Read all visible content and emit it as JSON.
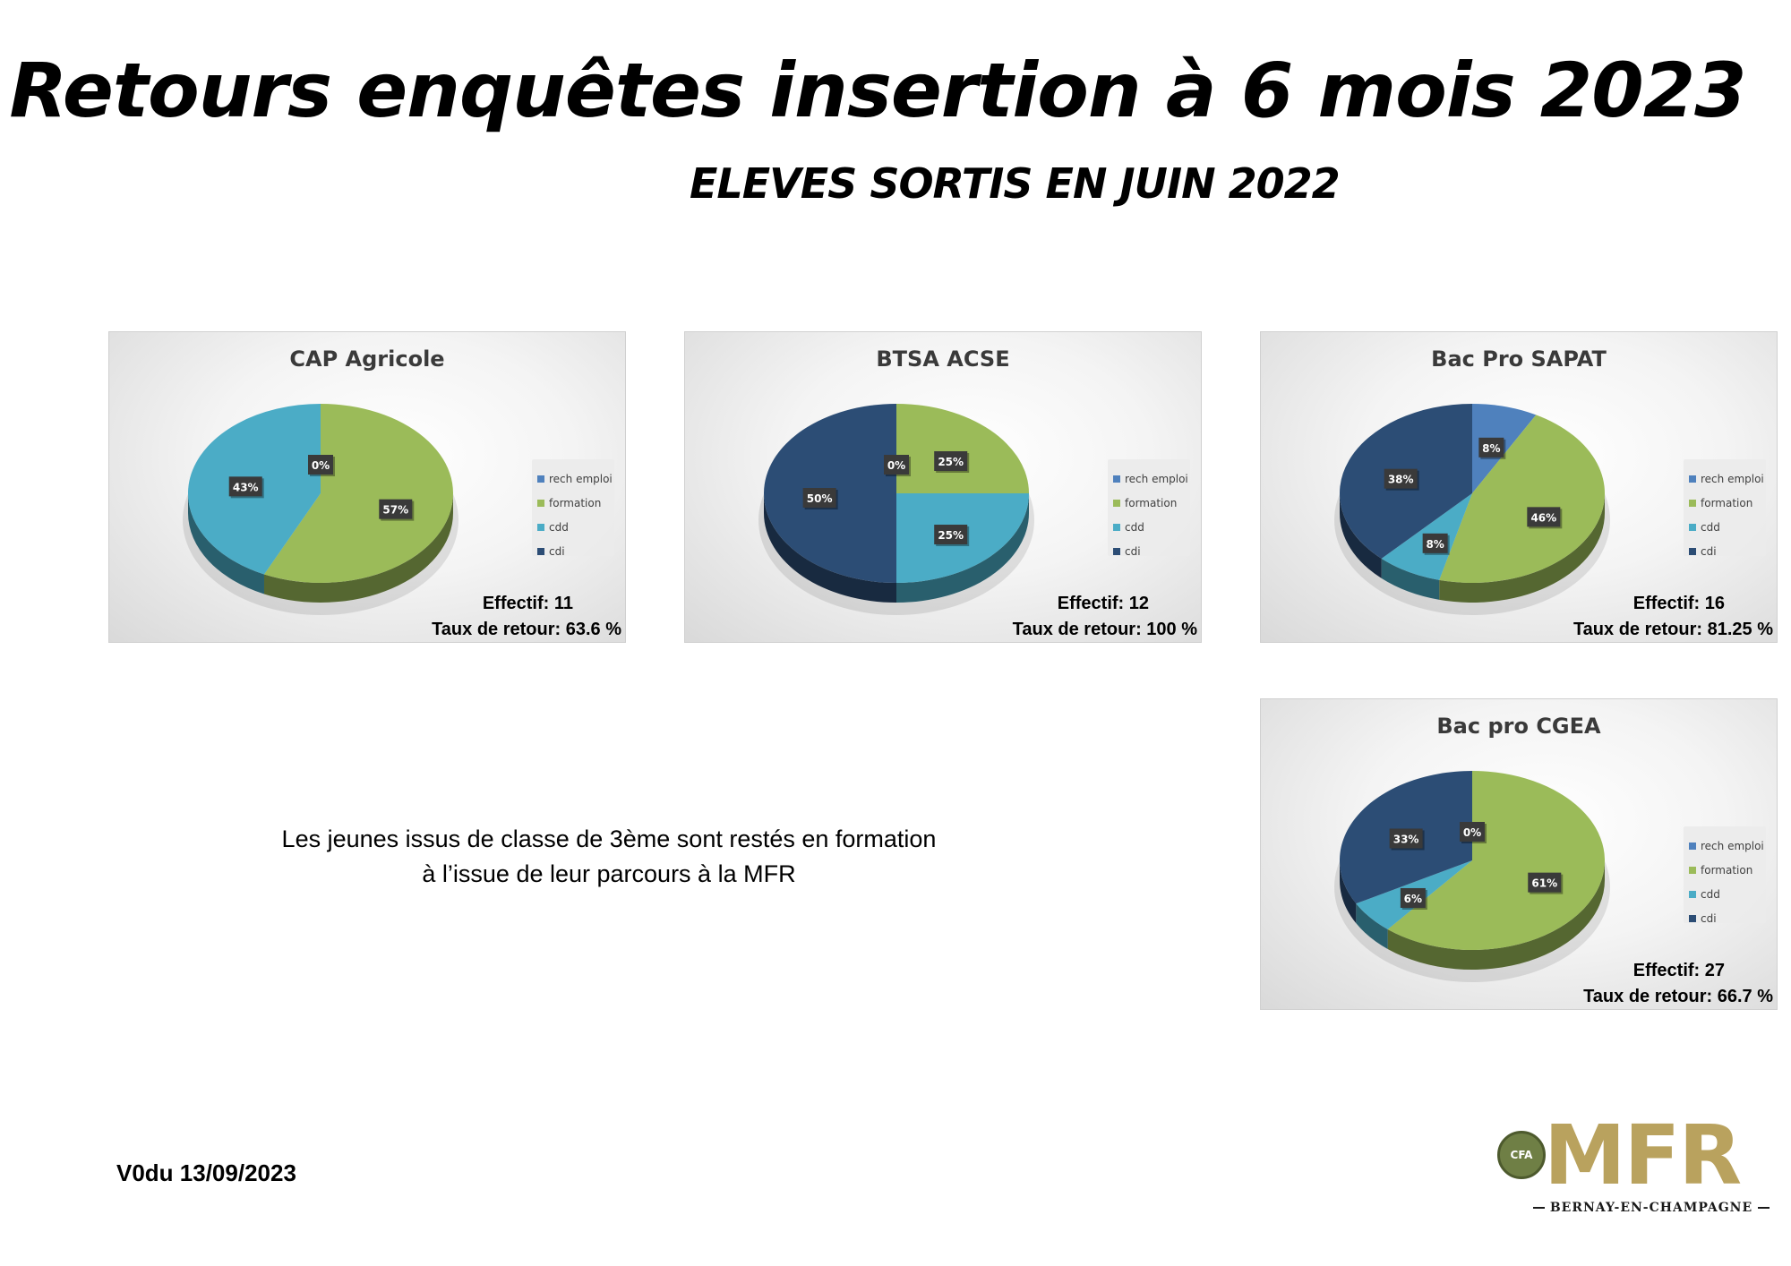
{
  "page": {
    "title": "Retours enquêtes insertion à 6 mois 2023",
    "subtitle": "ELEVES SORTIS EN JUIN 2022",
    "note_line1": "Les jeunes issus de classe de 3ème sont restés en formation",
    "note_line2": "à l’issue de leur parcours à la MFR",
    "version": "V0du 13/09/2023"
  },
  "logo": {
    "badge": "CFA",
    "name": "MFR",
    "place": "BERNAY-EN-CHAMPAGNE"
  },
  "colors": {
    "rech emploi": "#4f81bd",
    "formation": "#9bbb59",
    "cdd": "#4bacc6",
    "cdi": "#2c4d75"
  },
  "chart_data": [
    {
      "type": "pie",
      "title": "CAP Agricole",
      "categories": [
        "rech emploi",
        "formation",
        "cdd",
        "cdi"
      ],
      "values": [
        0,
        57,
        43,
        0
      ],
      "labels": [
        "0%",
        "57%",
        "43%",
        ""
      ],
      "legend": "right",
      "effectif": "Effectif: 11",
      "taux": "Taux de retour: 63.6 %"
    },
    {
      "type": "pie",
      "title": "BTSA ACSE",
      "categories": [
        "rech emploi",
        "formation",
        "cdd",
        "cdi"
      ],
      "values": [
        0,
        25,
        25,
        50
      ],
      "labels": [
        "0%",
        "25%",
        "25%",
        "50%"
      ],
      "legend": "right",
      "effectif": "Effectif: 12",
      "taux": "Taux de retour: 100 %"
    },
    {
      "type": "pie",
      "title": "Bac Pro SAPAT",
      "categories": [
        "rech emploi",
        "formation",
        "cdd",
        "cdi"
      ],
      "values": [
        8,
        46,
        8,
        38
      ],
      "labels": [
        "8%",
        "46%",
        "8%",
        "38%"
      ],
      "legend": "right",
      "effectif": "Effectif: 16",
      "taux": "Taux de retour: 81.25 %"
    },
    {
      "type": "pie",
      "title": "Bac pro CGEA",
      "categories": [
        "rech emploi",
        "formation",
        "cdd",
        "cdi"
      ],
      "values": [
        0,
        61,
        6,
        33
      ],
      "labels": [
        "0%",
        "61%",
        "6%",
        "33%"
      ],
      "legend": "right",
      "effectif": "Effectif: 27",
      "taux": "Taux de retour: 66.7 %"
    }
  ]
}
